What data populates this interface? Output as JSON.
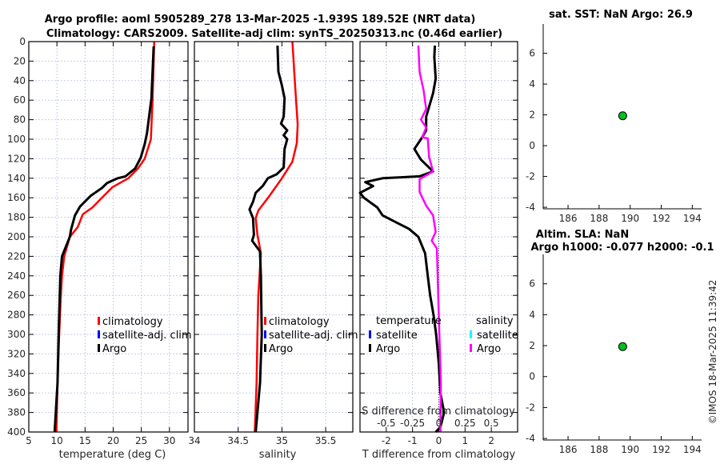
{
  "title": {
    "line1": "Argo profile: aoml 5905289_278 13-Mar-2025 -1.939S 189.52E (NRT data)",
    "line2": "Climatology: CARS2009. Satellite-adj clim: synTS_20250313.nc (0.46d earlier)"
  },
  "credit": "©IMOS 18-Mar-2025 11:39:42",
  "colors": {
    "climatology": "#ff0000",
    "satellite_adj": "#0000ff",
    "argo": "#000000",
    "sal_satellite": "#00ffff",
    "sal_argo": "#ff00ff",
    "marker": "#00c020"
  },
  "chart_data": [
    {
      "type": "line",
      "name": "temperature",
      "xlabel": "temperature (deg C)",
      "ylabel": "",
      "xlim": [
        5,
        33.3
      ],
      "ylim": [
        400,
        0
      ],
      "xticks": [
        "5",
        "10",
        "15",
        "20",
        "25",
        "30"
      ],
      "xtick_values": [
        5,
        10,
        15,
        20,
        25,
        30
      ],
      "yticks": [
        "0",
        "20",
        "40",
        "60",
        "80",
        "100",
        "120",
        "140",
        "160",
        "180",
        "200",
        "220",
        "240",
        "260",
        "280",
        "300",
        "320",
        "340",
        "360",
        "380",
        "400"
      ],
      "grid": true,
      "legend": [
        "climatology",
        "satellite-adj. clim",
        "Argo"
      ],
      "series": [
        {
          "name": "climatology",
          "color": "#ff0000",
          "depth": [
            0,
            60,
            100,
            120,
            130,
            140,
            149,
            160,
            170,
            177,
            190,
            200,
            220,
            240,
            260,
            300,
            350,
            400
          ],
          "values": [
            27.3,
            27.0,
            26.7,
            25.6,
            24.4,
            22.7,
            19.9,
            18.0,
            16.3,
            14.6,
            13.7,
            12.3,
            11.3,
            10.9,
            10.7,
            10.4,
            10.1,
            9.9
          ]
        },
        {
          "name": "Argo",
          "color": "#000000",
          "depth": [
            5,
            58,
            94,
            105,
            119,
            130,
            138,
            140,
            145,
            150,
            158,
            169,
            178,
            193,
            200,
            220,
            240,
            300,
            350,
            400
          ],
          "values": [
            27.2,
            26.8,
            26.0,
            25.6,
            24.9,
            23.9,
            22.2,
            20.8,
            18.9,
            18.0,
            16.0,
            14.1,
            13.2,
            12.5,
            12.3,
            10.9,
            10.6,
            10.3,
            10.1,
            9.6
          ]
        }
      ]
    },
    {
      "type": "line",
      "name": "salinity",
      "xlabel": "salinity",
      "xlim": [
        34,
        35.81
      ],
      "ylim": [
        400,
        0
      ],
      "xticks": [
        "34",
        "34.5",
        "35",
        "35.5"
      ],
      "xtick_values": [
        34,
        34.5,
        35,
        35.5
      ],
      "grid": true,
      "legend": [
        "climatology",
        "satellite-adj. clim",
        "Argo"
      ],
      "series": [
        {
          "name": "climatology",
          "color": "#ff0000",
          "depth": [
            0,
            44,
            85,
            104,
            123,
            140,
            159,
            173,
            181,
            198,
            217,
            260,
            300,
            350,
            400
          ],
          "values": [
            35.12,
            35.15,
            35.18,
            35.17,
            35.12,
            35.0,
            34.85,
            34.73,
            34.7,
            34.72,
            34.76,
            34.73,
            34.72,
            34.71,
            34.69
          ]
        },
        {
          "name": "Argo",
          "color": "#000000",
          "depth": [
            4,
            31,
            45,
            58,
            77,
            84,
            91,
            96,
            100,
            110,
            129,
            136,
            140,
            148,
            155,
            164,
            172,
            181,
            198,
            204,
            215,
            240,
            300,
            350,
            400
          ],
          "values": [
            34.95,
            34.96,
            35.0,
            35.03,
            35.02,
            34.99,
            35.06,
            35.02,
            35.06,
            35.03,
            35.02,
            34.94,
            34.84,
            34.78,
            34.7,
            34.67,
            34.63,
            34.67,
            34.68,
            34.66,
            34.75,
            34.76,
            34.77,
            34.75,
            34.7
          ]
        }
      ]
    },
    {
      "type": "line",
      "name": "difference",
      "xlabel": "T difference from climatology",
      "x2label": "S difference from climatology",
      "xlim": [
        -3,
        3
      ],
      "ylim": [
        400,
        0
      ],
      "xticks": [
        "-2",
        "-1",
        "0",
        "1",
        "2"
      ],
      "xtick_values": [
        -2,
        -1,
        0,
        1,
        2
      ],
      "x2ticks": [
        "-0.5",
        "-0.25",
        "0",
        "0.25",
        "0.5"
      ],
      "x2tick_values": [
        -0.5,
        -0.25,
        0,
        0.25,
        0.5
      ],
      "s_to_t_scale": 4,
      "grid": true,
      "legend_temperature": {
        "header": "temperature",
        "items": [
          "satellite",
          "Argo"
        ]
      },
      "legend_salinity": {
        "header": "salinity",
        "items": [
          "satellite",
          "Argo"
        ]
      },
      "series": [
        {
          "name": "T Argo",
          "color": "#000000",
          "units": "T",
          "depth": [
            4,
            16,
            38,
            53,
            77,
            91,
            100,
            110,
            121,
            133,
            138,
            140,
            144,
            148,
            155,
            160,
            170,
            178,
            185,
            192,
            200,
            217,
            240,
            260,
            280,
            300,
            330,
            360,
            380,
            395,
            400
          ],
          "values": [
            -0.15,
            -0.17,
            -0.12,
            -0.22,
            -0.48,
            -0.48,
            -0.68,
            -0.93,
            -0.68,
            -0.22,
            -0.73,
            -2.14,
            -2.8,
            -2.5,
            -3.0,
            -2.85,
            -2.34,
            -2.14,
            -1.64,
            -1.13,
            -0.78,
            -0.52,
            -0.42,
            -0.33,
            -0.2,
            -0.1,
            0.0,
            0.06,
            0.2,
            0.06,
            -0.12
          ]
        },
        {
          "name": "S Argo",
          "color": "#ff00ff",
          "units": "S",
          "depth": [
            4,
            31,
            50,
            69,
            80,
            88,
            98,
            99,
            118,
            133,
            141,
            154,
            168,
            178,
            195,
            204,
            212,
            250,
            300,
            350,
            400
          ],
          "values": [
            -0.195,
            -0.183,
            -0.145,
            -0.12,
            -0.17,
            -0.12,
            -0.158,
            -0.105,
            -0.093,
            -0.055,
            -0.183,
            -0.183,
            -0.12,
            -0.055,
            -0.03,
            -0.068,
            -0.018,
            -0.008,
            0.005,
            0.02,
            0.015
          ]
        }
      ]
    },
    {
      "type": "scatter",
      "name": "sst-location",
      "title": "sat. SST: NaN Argo: 26.9",
      "xlim": [
        184.4,
        194.6
      ],
      "ylim": [
        -4.1,
        7.9
      ],
      "xticks": [
        "186",
        "188",
        "190",
        "192",
        "194"
      ],
      "xtick_values": [
        186,
        188,
        190,
        192,
        194
      ],
      "yticks": [
        "-4",
        "-2",
        "0",
        "2",
        "4",
        "6"
      ],
      "ytick_values": [
        -4,
        -2,
        0,
        2,
        4,
        6
      ],
      "points": [
        {
          "x": 189.52,
          "y": 1.939
        }
      ]
    },
    {
      "type": "scatter",
      "name": "sla-location",
      "title": "Altim. SLA: NaN",
      "subtitle": "Argo h1000: -0.077 h2000: -0.1",
      "xlim": [
        184.4,
        194.6
      ],
      "ylim": [
        -4.1,
        7.9
      ],
      "xticks": [
        "186",
        "188",
        "190",
        "192",
        "194"
      ],
      "xtick_values": [
        186,
        188,
        190,
        192,
        194
      ],
      "yticks": [
        "-4",
        "-2",
        "0",
        "2",
        "4",
        "6"
      ],
      "ytick_values": [
        -4,
        -2,
        0,
        2,
        4,
        6
      ],
      "points": [
        {
          "x": 189.52,
          "y": 1.939
        }
      ]
    }
  ]
}
